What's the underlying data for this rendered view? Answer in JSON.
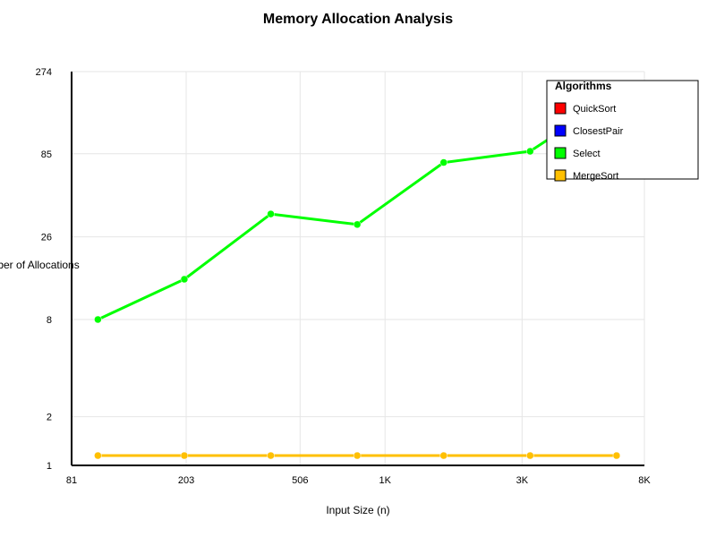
{
  "chart_data": {
    "type": "line",
    "title": "Memory Allocation Analysis",
    "xlabel": "Input Size (n)",
    "ylabel": "Number of Allocations",
    "x_scale": "log",
    "y_scale": "log",
    "xlim": [
      81,
      8000
    ],
    "ylim": [
      1,
      274
    ],
    "x_ticks": [
      {
        "value": 81,
        "label": "81"
      },
      {
        "value": 203,
        "label": "203"
      },
      {
        "value": 506,
        "label": "506"
      },
      {
        "value": 1000,
        "label": "1K"
      },
      {
        "value": 3000,
        "label": "3K"
      },
      {
        "value": 8000,
        "label": "8K"
      }
    ],
    "y_ticks": [
      {
        "value": 1,
        "label": "1"
      },
      {
        "value": 2,
        "label": "2"
      },
      {
        "value": 8,
        "label": "8"
      },
      {
        "value": 26,
        "label": "26"
      },
      {
        "value": 85,
        "label": "85"
      },
      {
        "value": 274,
        "label": "274"
      }
    ],
    "x": [
      100,
      200,
      400,
      800,
      1600,
      3200,
      6400
    ],
    "series": [
      {
        "name": "QuickSort",
        "color": "#ff0000",
        "values": [
          1.15,
          1.15,
          1.15,
          1.15,
          1.15,
          1.15,
          1.15
        ]
      },
      {
        "name": "ClosestPair",
        "color": "#0000ff",
        "values": [
          1.15,
          1.15,
          1.15,
          1.15,
          1.15,
          1.15,
          1.15
        ]
      },
      {
        "name": "Select",
        "color": "#00ff00",
        "values": [
          8.0,
          14.2,
          36.0,
          31.0,
          75.0,
          88.0,
          197.0
        ]
      },
      {
        "name": "MergeSort",
        "color": "#ffc000",
        "values": [
          1.15,
          1.15,
          1.15,
          1.15,
          1.15,
          1.15,
          1.15
        ]
      }
    ],
    "grid": true,
    "legend": {
      "title": "Algorithms",
      "position": "top-right"
    }
  }
}
